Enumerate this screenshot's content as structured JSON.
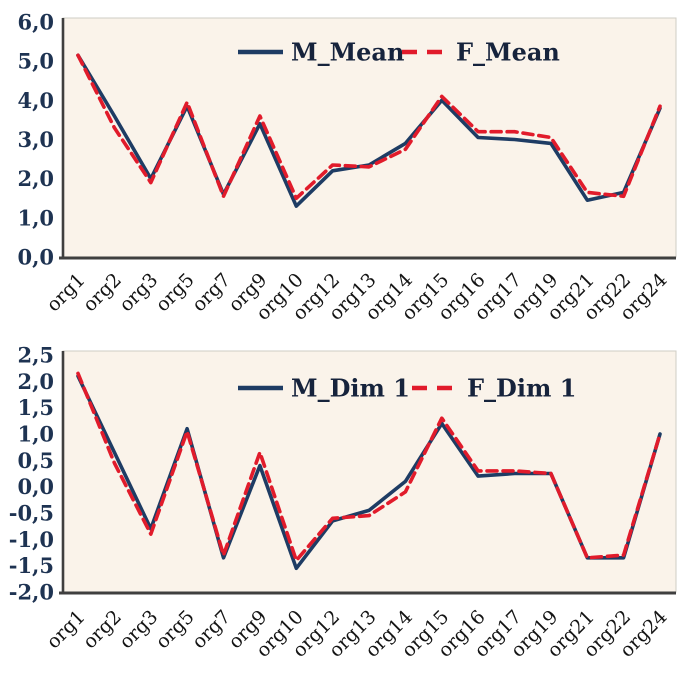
{
  "figure_title": "",
  "colors": {
    "male_line": "#1e3c64",
    "female_line": "#e11b2b",
    "plot_background": "#faf3ea",
    "plot_border": "#cfccc4",
    "axis": "#3f3f3f",
    "ytick_label": "#1e3352",
    "xtick_label": "#141414",
    "legend_text": "#16233c",
    "page_background": "#ffffff"
  },
  "chart_data": [
    {
      "type": "line",
      "title": "",
      "xlabel": "",
      "ylabel": "",
      "grid": false,
      "legend_position": "top-center",
      "decimal_separator": "comma",
      "categories": [
        "org1",
        "org2",
        "org3",
        "org5",
        "org7",
        "org9",
        "org10",
        "org12",
        "org13",
        "org14",
        "org15",
        "org16",
        "org17",
        "org19",
        "org21",
        "org22",
        "org24"
      ],
      "series": [
        {
          "name": "M_Mean",
          "line_style": "solid",
          "color": "#1e3c64",
          "values": [
            5.15,
            3.6,
            2.0,
            3.85,
            1.6,
            3.4,
            1.3,
            2.2,
            2.35,
            2.9,
            4.0,
            3.05,
            3.0,
            2.9,
            1.45,
            1.65,
            3.8
          ]
        },
        {
          "name": "F_Mean",
          "line_style": "dashed",
          "color": "#e11b2b",
          "values": [
            5.15,
            3.3,
            1.9,
            3.95,
            1.55,
            3.6,
            1.5,
            2.35,
            2.3,
            2.75,
            4.1,
            3.2,
            3.2,
            3.05,
            1.65,
            1.55,
            3.85
          ]
        }
      ],
      "ylim": [
        0,
        6
      ],
      "ytick_values": [
        6,
        5,
        4,
        3,
        2,
        1,
        0
      ],
      "ytick_labels": [
        "6,0",
        "5,0",
        "4,0",
        "3,0",
        "2,0",
        "1,0",
        "0,0"
      ]
    },
    {
      "type": "line",
      "title": "",
      "xlabel": "",
      "ylabel": "",
      "grid": false,
      "legend_position": "top-center",
      "decimal_separator": "comma",
      "categories": [
        "org1",
        "org2",
        "org3",
        "org5",
        "org7",
        "org9",
        "org10",
        "org12",
        "org13",
        "org14",
        "org15",
        "org16",
        "org17",
        "org19",
        "org21",
        "org22",
        "org24"
      ],
      "series": [
        {
          "name": "M_Dim 1",
          "line_style": "solid",
          "color": "#1e3c64",
          "values": [
            2.1,
            0.65,
            -0.8,
            1.1,
            -1.35,
            0.4,
            -1.55,
            -0.65,
            -0.45,
            0.1,
            1.2,
            0.2,
            0.25,
            0.25,
            -1.35,
            -1.35,
            1.0
          ]
        },
        {
          "name": "F_Dim 1",
          "line_style": "dashed",
          "color": "#e11b2b",
          "values": [
            2.15,
            0.45,
            -0.9,
            1.05,
            -1.3,
            0.65,
            -1.4,
            -0.6,
            -0.55,
            -0.1,
            1.3,
            0.3,
            0.3,
            0.25,
            -1.35,
            -1.3,
            1.0
          ]
        }
      ],
      "ylim": [
        -2,
        2.5
      ],
      "ytick_values": [
        2.5,
        2.0,
        1.5,
        1.0,
        0.5,
        0.0,
        -0.5,
        -1.0,
        -1.5,
        -2.0
      ],
      "ytick_labels": [
        "2,5",
        "2,0",
        "1,5",
        "1,0",
        "0,5",
        "0,0",
        "-0,5",
        "-1,0",
        "-1,5",
        "-2,0"
      ]
    }
  ]
}
